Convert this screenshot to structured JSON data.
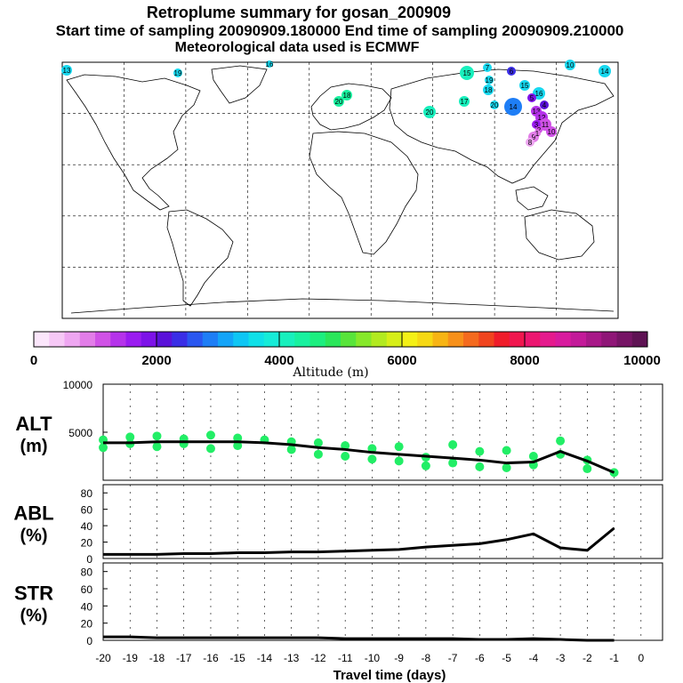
{
  "header": {
    "title": "Retroplume summary for gosan_200909",
    "sampling": "Start time of sampling 20090909.180000     End time of sampling 20090909.210000",
    "met": "Meteorological data used is ECMWF"
  },
  "colorbar": {
    "label": "Altitude (m)",
    "ticks": [
      "0",
      "2000",
      "4000",
      "6000",
      "8000",
      "10000"
    ],
    "colors": [
      "#fbe6fb",
      "#f6c8f6",
      "#eea6f1",
      "#e27de8",
      "#d052e6",
      "#b533ea",
      "#9a1cf0",
      "#7d12e8",
      "#5a12d9",
      "#3a2ee6",
      "#2a57f0",
      "#1e7ef6",
      "#14a4f8",
      "#0fc6f4",
      "#10e0e8",
      "#16ecd8",
      "#18f0bd",
      "#18f19f",
      "#1cee7f",
      "#2ae65a",
      "#58e43a",
      "#86e82a",
      "#b2ea20",
      "#d6ee18",
      "#f4f016",
      "#f6d814",
      "#f7b414",
      "#f7901a",
      "#f46a1e",
      "#f0441e",
      "#ef1c2a",
      "#f0164e",
      "#ec1670",
      "#e51a8d",
      "#d81b9e",
      "#c31a99",
      "#a81888",
      "#8f1677",
      "#761465",
      "#5e1253"
    ]
  },
  "map": {
    "labels": [
      "13",
      "19",
      "16",
      "10",
      "14",
      "15",
      "18",
      "20",
      "20",
      "17",
      "18",
      "19",
      "20",
      "16",
      "15",
      "14",
      "13",
      "12",
      "11",
      "10",
      "9",
      "8",
      "7",
      "6",
      "5",
      "4",
      "3",
      "2",
      "1"
    ]
  },
  "chart_data": [
    {
      "type": "line",
      "panel": "ALT",
      "ylabel": "ALT\n(m)",
      "ylabel_line1": "ALT",
      "ylabel_line2": "(m)",
      "x": [
        -20,
        -19,
        -18,
        -17,
        -16,
        -15,
        -14,
        -13,
        -12,
        -11,
        -10,
        -9,
        -8,
        -7,
        -6,
        -5,
        -4,
        -3,
        -2,
        -1
      ],
      "values": [
        3900,
        3900,
        4000,
        4000,
        4000,
        4000,
        3900,
        3700,
        3400,
        3200,
        2900,
        2700,
        2500,
        2300,
        2100,
        1800,
        1900,
        3000,
        2000,
        800
      ],
      "ylim": [
        0,
        10000
      ],
      "yticks": [
        "10000",
        "5000"
      ],
      "scatter_color": "#22ee66",
      "scatter": [
        {
          "x": -20,
          "y": 4200
        },
        {
          "x": -20,
          "y": 3400
        },
        {
          "x": -19,
          "y": 4500
        },
        {
          "x": -19,
          "y": 3800
        },
        {
          "x": -18,
          "y": 4600
        },
        {
          "x": -18,
          "y": 3500
        },
        {
          "x": -17,
          "y": 4300
        },
        {
          "x": -17,
          "y": 3800
        },
        {
          "x": -16,
          "y": 4700
        },
        {
          "x": -16,
          "y": 3300
        },
        {
          "x": -15,
          "y": 4400
        },
        {
          "x": -15,
          "y": 3600
        },
        {
          "x": -14,
          "y": 4200
        },
        {
          "x": -13,
          "y": 4000
        },
        {
          "x": -13,
          "y": 3200
        },
        {
          "x": -12,
          "y": 3900
        },
        {
          "x": -12,
          "y": 2700
        },
        {
          "x": -11,
          "y": 3600
        },
        {
          "x": -11,
          "y": 2500
        },
        {
          "x": -10,
          "y": 3300
        },
        {
          "x": -10,
          "y": 2200
        },
        {
          "x": -9,
          "y": 3500
        },
        {
          "x": -9,
          "y": 2000
        },
        {
          "x": -8,
          "y": 2400
        },
        {
          "x": -8,
          "y": 1500
        },
        {
          "x": -7,
          "y": 3700
        },
        {
          "x": -7,
          "y": 1800
        },
        {
          "x": -6,
          "y": 3000
        },
        {
          "x": -6,
          "y": 1400
        },
        {
          "x": -5,
          "y": 3100
        },
        {
          "x": -5,
          "y": 1300
        },
        {
          "x": -4,
          "y": 2500
        },
        {
          "x": -4,
          "y": 1600
        },
        {
          "x": -3,
          "y": 4100
        },
        {
          "x": -3,
          "y": 2700
        },
        {
          "x": -2,
          "y": 2100
        },
        {
          "x": -2,
          "y": 1200
        },
        {
          "x": -1,
          "y": 800
        }
      ]
    },
    {
      "type": "line",
      "panel": "ABL",
      "ylabel_line1": "ABL",
      "ylabel_line2": "(%)",
      "x": [
        -20,
        -19,
        -18,
        -17,
        -16,
        -15,
        -14,
        -13,
        -12,
        -11,
        -10,
        -9,
        -8,
        -7,
        -6,
        -5,
        -4,
        -3,
        -2,
        -1
      ],
      "values": [
        5,
        5,
        5,
        6,
        6,
        7,
        7,
        8,
        8,
        9,
        10,
        11,
        14,
        16,
        18,
        23,
        30,
        13,
        10,
        37
      ],
      "ylim": [
        0,
        90
      ],
      "yticks": [
        "80",
        "60",
        "40",
        "20",
        "0"
      ]
    },
    {
      "type": "line",
      "panel": "STR",
      "ylabel_line1": "STR",
      "ylabel_line2": "(%)",
      "x": [
        -20,
        -19,
        -18,
        -17,
        -16,
        -15,
        -14,
        -13,
        -12,
        -11,
        -10,
        -9,
        -8,
        -7,
        -6,
        -5,
        -4,
        -3,
        -2,
        -1
      ],
      "values": [
        4,
        4,
        3,
        3,
        3,
        3,
        3,
        3,
        3,
        2,
        2,
        2,
        2,
        2,
        1,
        1,
        2,
        1,
        0,
        0
      ],
      "ylim": [
        0,
        90
      ],
      "yticks": [
        "80",
        "60",
        "40",
        "20",
        "0"
      ],
      "xlabel": "Travel time (days)",
      "xticks": [
        "-20",
        "-19",
        "-18",
        "-17",
        "-16",
        "-15",
        "-14",
        "-13",
        "-12",
        "-11",
        "-10",
        "-9",
        "-8",
        "-7",
        "-6",
        "-5",
        "-4",
        "-3",
        "-2",
        "-1",
        "0"
      ]
    }
  ]
}
